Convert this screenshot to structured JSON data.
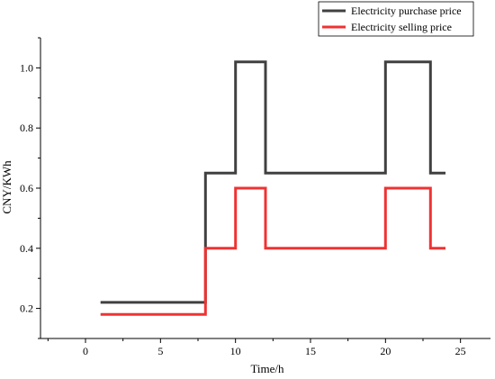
{
  "chart_data": {
    "type": "line",
    "step": true,
    "xlabel": "Time/h",
    "ylabel": "CNY/KWh",
    "xlim": [
      -3,
      27
    ],
    "ylim": [
      0.1,
      1.1
    ],
    "xticks": [
      0,
      5,
      10,
      15,
      20,
      25
    ],
    "yticks": [
      0.2,
      0.4,
      0.6,
      0.8,
      1.0
    ],
    "ytick_labels": [
      "0.2",
      "0.4",
      "0.6",
      "0.8",
      "1.0"
    ],
    "grid": false,
    "legend_position": "top-right",
    "series": [
      {
        "name": "Electricity purchase price",
        "color": "#404040",
        "points": [
          [
            1,
            0.22
          ],
          [
            8,
            0.22
          ],
          [
            8,
            0.65
          ],
          [
            10,
            0.65
          ],
          [
            10,
            1.02
          ],
          [
            12,
            1.02
          ],
          [
            12,
            0.65
          ],
          [
            20,
            0.65
          ],
          [
            20,
            1.02
          ],
          [
            23,
            1.02
          ],
          [
            23,
            0.65
          ],
          [
            24,
            0.65
          ]
        ]
      },
      {
        "name": "Electricity selling price",
        "color": "#f03232",
        "points": [
          [
            1,
            0.18
          ],
          [
            8,
            0.18
          ],
          [
            8,
            0.4
          ],
          [
            10,
            0.4
          ],
          [
            10,
            0.6
          ],
          [
            12,
            0.6
          ],
          [
            12,
            0.4
          ],
          [
            20,
            0.4
          ],
          [
            20,
            0.6
          ],
          [
            23,
            0.6
          ],
          [
            23,
            0.4
          ],
          [
            24,
            0.4
          ]
        ]
      }
    ]
  }
}
